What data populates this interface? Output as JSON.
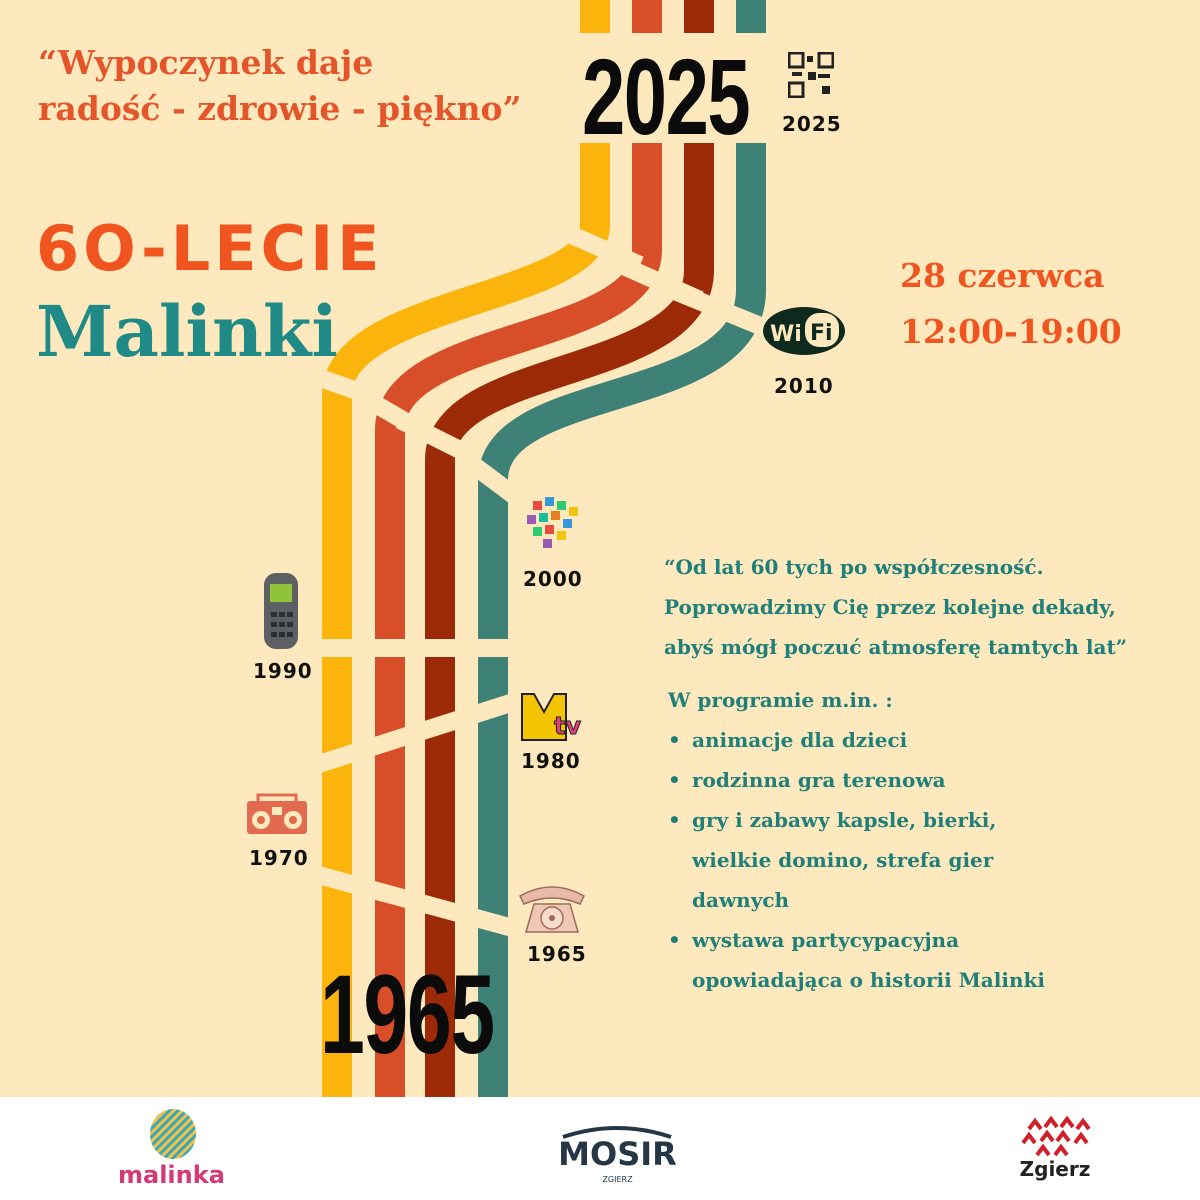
{
  "quote": {
    "line1": "“Wypoczynek daje",
    "line2": "radość - zdrowie - piękno”"
  },
  "title": {
    "line1": "6O-LECIE",
    "line2": "Malinki"
  },
  "years": {
    "top_big": "2025",
    "bottom_big": "1965"
  },
  "timeline": [
    {
      "year": "2025",
      "icon": "qr-code-icon"
    },
    {
      "year": "2010",
      "icon": "wifi-icon"
    },
    {
      "year": "2000",
      "icon": "app-icons-cluster-icon"
    },
    {
      "year": "1990",
      "icon": "mobile-phone-icon"
    },
    {
      "year": "1980",
      "icon": "mtv-logo-icon"
    },
    {
      "year": "1970",
      "icon": "boombox-icon"
    },
    {
      "year": "1965",
      "icon": "rotary-telephone-icon"
    }
  ],
  "event": {
    "date": "28 czerwca",
    "time": "12:00-19:00"
  },
  "description": {
    "line1": "“Od lat 60 tych po współczesność.",
    "line2": "Poprowadzimy Cię przez kolejne dekady,",
    "line3": "abyś mógł poczuć atmosferę tamtych lat”"
  },
  "program": {
    "heading": "W programie m.in. :",
    "items": [
      "animacje dla dzieci",
      "rodzinna gra terenowa",
      "gry i zabawy kapsle, bierki, wielkie domino, strefa gier dawnych",
      "wystawa partycypacyjna opowiadająca o historii Malinki"
    ]
  },
  "footer": {
    "logos": [
      "malinka",
      "MOSIR",
      "ZGIERZ",
      "Zgierz"
    ]
  },
  "colors": {
    "background": "#fde9bd",
    "yellow": "#fbb40b",
    "orange": "#d84e28",
    "dark_red": "#9c2a06",
    "teal": "#3e8177",
    "title_orange": "#f0541f",
    "title_teal": "#1f8a86"
  }
}
